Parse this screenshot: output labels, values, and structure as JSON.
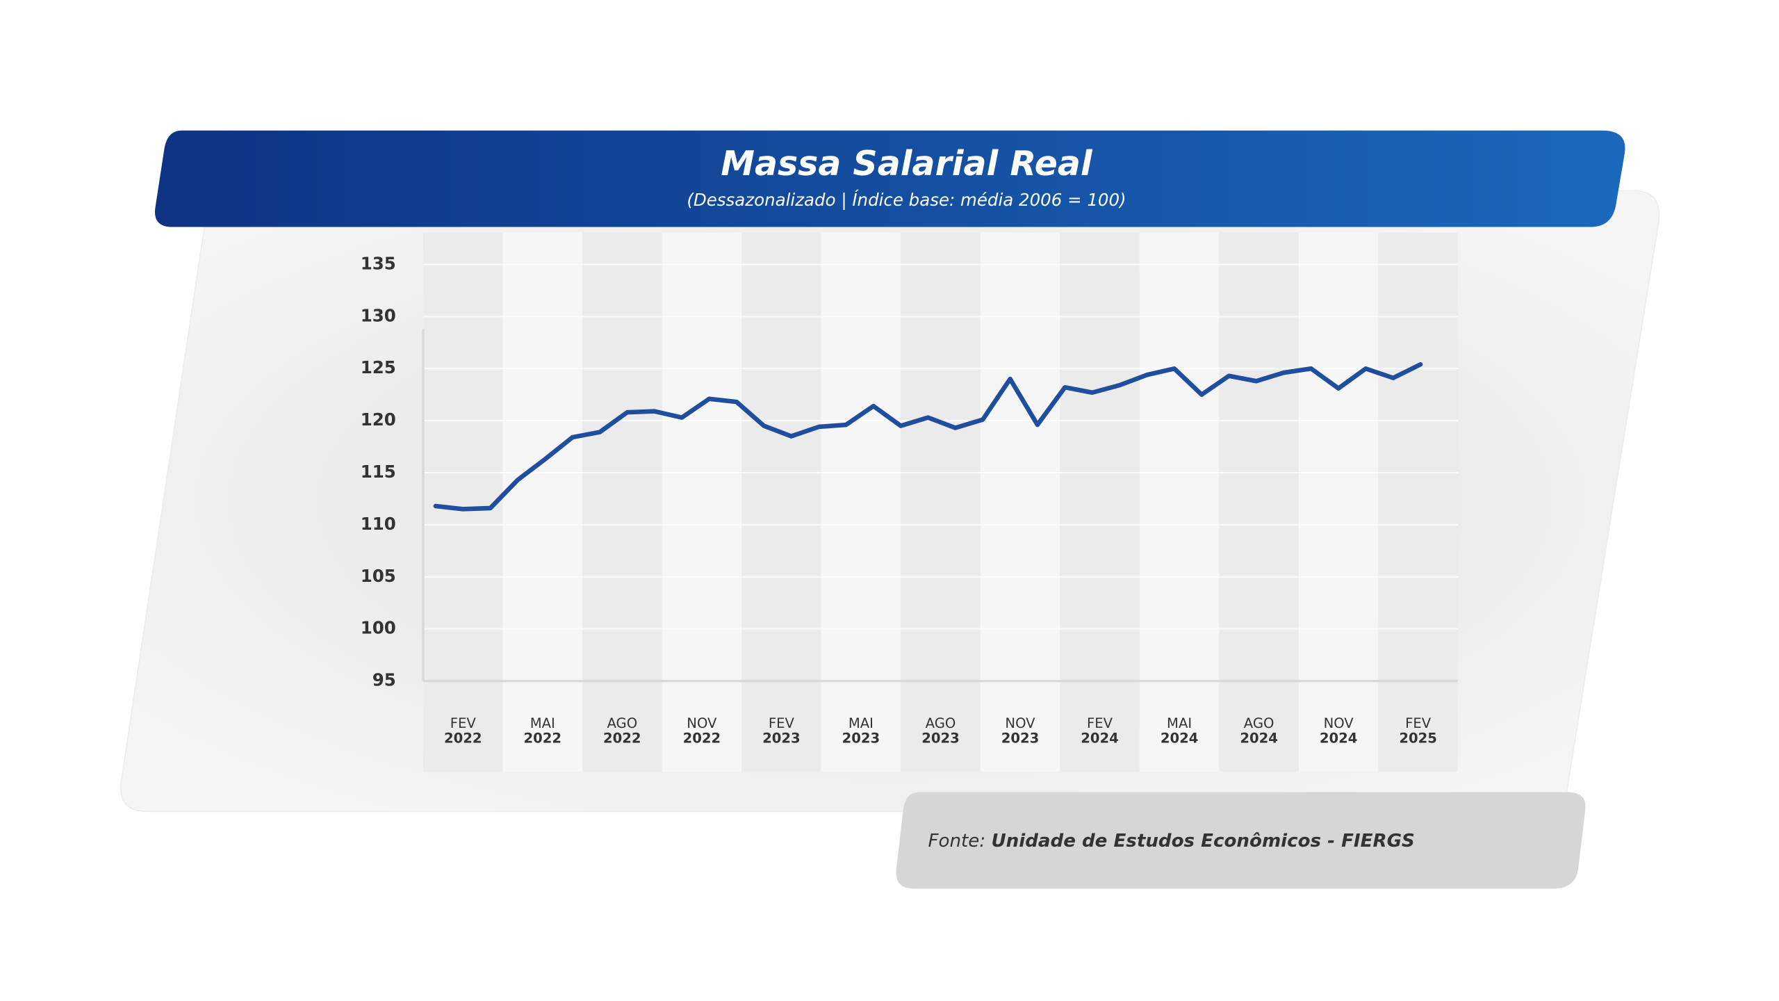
{
  "chart_data": {
    "type": "line",
    "title": "Massa Salarial Real",
    "subtitle": "(Dessazonalizado | Índice base: média 2006 = 100)",
    "source_prefix": "Fonte:",
    "source": "Unidade de Estudos Econômicos - FIERGS",
    "x_axis_labels": [
      {
        "month": "FEV",
        "year": "2022"
      },
      {
        "month": "MAI",
        "year": "2022"
      },
      {
        "month": "AGO",
        "year": "2022"
      },
      {
        "month": "NOV",
        "year": "2022"
      },
      {
        "month": "FEV",
        "year": "2023"
      },
      {
        "month": "MAI",
        "year": "2023"
      },
      {
        "month": "AGO",
        "year": "2023"
      },
      {
        "month": "NOV",
        "year": "2023"
      },
      {
        "month": "FEV",
        "year": "2024"
      },
      {
        "month": "MAI",
        "year": "2024"
      },
      {
        "month": "AGO",
        "year": "2024"
      },
      {
        "month": "NOV",
        "year": "2024"
      },
      {
        "month": "FEV",
        "year": "2025"
      }
    ],
    "color": "#1f4e9e",
    "values": [
      111.8,
      111.5,
      111.6,
      114.3,
      116.3,
      118.4,
      118.9,
      120.8,
      120.9,
      120.3,
      122.1,
      121.8,
      119.5,
      118.5,
      119.4,
      119.6,
      121.4,
      119.5,
      120.3,
      119.3,
      120.1,
      124.0,
      119.6,
      123.2,
      122.7,
      123.4,
      124.4,
      125.0,
      122.5,
      124.3,
      123.8,
      124.6,
      125.0,
      123.1,
      125.0,
      124.1,
      125.4
    ],
    "ylim": [
      95,
      135
    ],
    "yticks": [
      95,
      100,
      105,
      110,
      115,
      120,
      125,
      130,
      135
    ],
    "grid": true
  }
}
